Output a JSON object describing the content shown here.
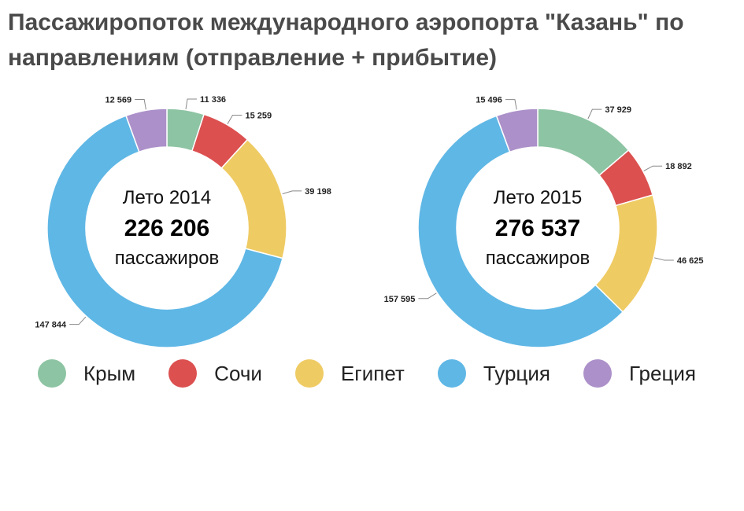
{
  "title": "Пассажиропоток международного аэропорта \"Казань\" по направлениям (отправление + прибытие)",
  "chart_data": [
    {
      "type": "pie",
      "center_line1": "Лето 2014",
      "center_line2": "226 206",
      "center_line3": "пассажиров",
      "categories": [
        "Крым",
        "Сочи",
        "Египет",
        "Турция",
        "Греция"
      ],
      "values": [
        11336,
        15259,
        39198,
        147844,
        12569
      ],
      "value_labels": [
        "11 336",
        "15 259",
        "39 198",
        "147 844",
        "12 569"
      ]
    },
    {
      "type": "pie",
      "center_line1": "Лето 2015",
      "center_line2": "276 537",
      "center_line3": "пассажиров",
      "categories": [
        "Крым",
        "Сочи",
        "Египет",
        "Турция",
        "Греция"
      ],
      "values": [
        37929,
        18892,
        46625,
        157595,
        15496
      ],
      "value_labels": [
        "37 929",
        "18 892",
        "46 625",
        "157 595",
        "15 496"
      ]
    }
  ],
  "legend": [
    {
      "label": "Крым",
      "color": "#8dc4a3"
    },
    {
      "label": "Сочи",
      "color": "#dc5050"
    },
    {
      "label": "Египет",
      "color": "#efcb64"
    },
    {
      "label": "Турция",
      "color": "#5fb7e5"
    },
    {
      "label": "Греция",
      "color": "#ac90c9"
    }
  ]
}
